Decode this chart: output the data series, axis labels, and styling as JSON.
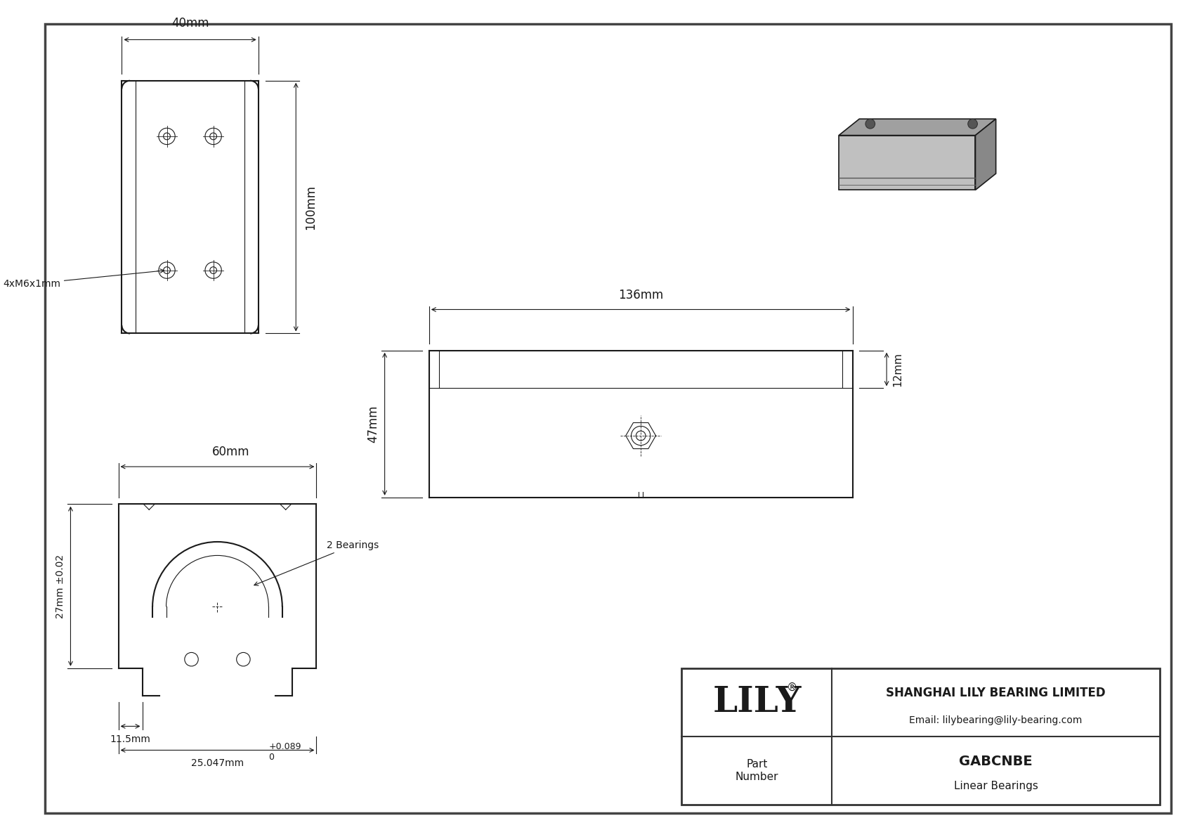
{
  "bg_color": "#ffffff",
  "line_color": "#1a1a1a",
  "title_company": "SHANGHAI LILY BEARING LIMITED",
  "title_email": "Email: lilybearing@lily-bearing.com",
  "part_label": "Part\nNumber",
  "part_number": "GABCNBE",
  "part_type": "Linear Bearings",
  "brand": "LILY",
  "dim_40mm": "40mm",
  "dim_100mm": "100mm",
  "dim_60mm": "60mm",
  "dim_136mm": "136mm",
  "dim_47mm": "47mm",
  "dim_12mm": "12mm",
  "dim_27mm": "27mm ±0.02",
  "dim_11_5mm": "11.5mm",
  "dim_25_047mm": "25.047mm",
  "dim_tolerance": "+0.089\n0",
  "label_4xM6": "4xM6x1mm",
  "label_2bearings": "2 Bearings"
}
